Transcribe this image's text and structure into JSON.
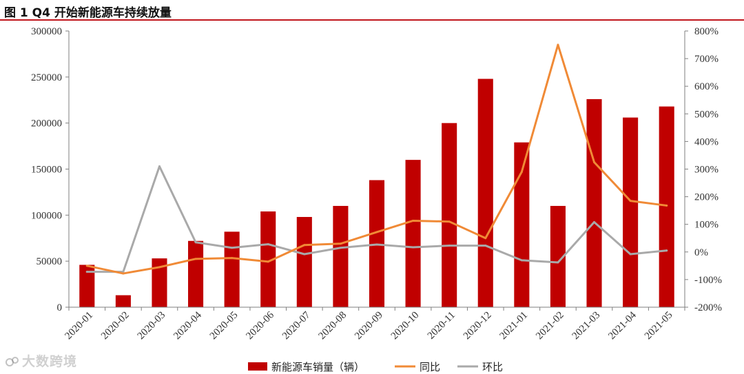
{
  "figure": {
    "title": "图 1 Q4 开始新能源车持续放量",
    "watermark": "大数跨境"
  },
  "colors": {
    "bar": "#c00000",
    "yoy": "#f08a36",
    "mom": "#a9a9a9",
    "rule": "#c0161c",
    "axis": "#7f7f7f"
  },
  "chart_data": {
    "type": "bar",
    "categories": [
      "2020-01",
      "2020-02",
      "2020-03",
      "2020-04",
      "2020-05",
      "2020-06",
      "2020-07",
      "2020-08",
      "2020-09",
      "2020-10",
      "2020-11",
      "2020-12",
      "2021-01",
      "2021-02",
      "2021-03",
      "2021-04",
      "2021-05"
    ],
    "series": [
      {
        "name": "新能源车销量（辆）",
        "type": "bar",
        "axis": "left",
        "values": [
          46000,
          13000,
          53000,
          72000,
          82000,
          104000,
          98000,
          110000,
          138000,
          160000,
          200000,
          248000,
          179000,
          110000,
          226000,
          206000,
          218000
        ]
      },
      {
        "name": "同比",
        "type": "line",
        "axis": "right",
        "values": [
          -50,
          -78,
          -55,
          -25,
          -22,
          -35,
          25,
          30,
          72,
          113,
          110,
          50,
          290,
          750,
          325,
          185,
          168
        ]
      },
      {
        "name": "环比",
        "type": "line",
        "axis": "right",
        "values": [
          -72,
          -72,
          310,
          35,
          15,
          28,
          -8,
          15,
          27,
          17,
          23,
          23,
          -30,
          -38,
          108,
          -8,
          5
        ]
      }
    ],
    "y_left": {
      "lim": [
        0,
        300000
      ],
      "ticks": [
        "0",
        "50000",
        "100000",
        "150000",
        "200000",
        "250000",
        "300000"
      ]
    },
    "y_right": {
      "lim": [
        -200,
        800
      ],
      "ticks": [
        "-200%",
        "-100%",
        "0%",
        "100%",
        "200%",
        "300%",
        "400%",
        "500%",
        "600%",
        "700%",
        "800%"
      ]
    },
    "grid": false,
    "legend_position": "bottom"
  }
}
